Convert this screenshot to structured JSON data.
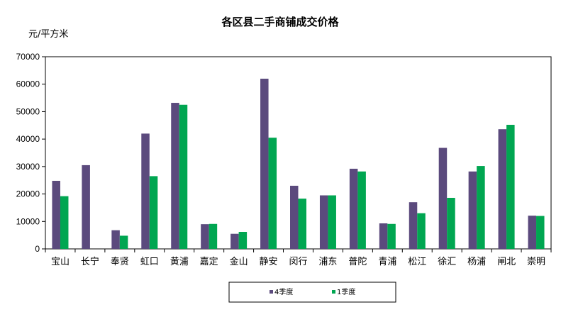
{
  "chart_data": {
    "type": "bar",
    "title": "各区县二手商铺成交价格",
    "ylabel": "元/平方米",
    "ylim": [
      0,
      70000
    ],
    "yticks": [
      0,
      10000,
      20000,
      30000,
      40000,
      50000,
      60000,
      70000
    ],
    "categories": [
      "宝山",
      "长宁",
      "奉贤",
      "虹口",
      "黄浦",
      "嘉定",
      "金山",
      "静安",
      "闵行",
      "浦东",
      "普陀",
      "青浦",
      "松江",
      "徐汇",
      "杨浦",
      "闸北",
      "崇明"
    ],
    "series": [
      {
        "name": "4季度",
        "color": "#5b4a7d",
        "values": [
          24800,
          30500,
          6800,
          42000,
          53200,
          9000,
          5500,
          62000,
          23000,
          19500,
          29200,
          9300,
          17000,
          36800,
          28200,
          43600,
          12100
        ]
      },
      {
        "name": "1季度",
        "color": "#00a651",
        "values": [
          19200,
          null,
          4800,
          26500,
          52500,
          9100,
          6200,
          40500,
          18300,
          19500,
          28200,
          9100,
          13000,
          18600,
          30200,
          45200,
          12000
        ]
      }
    ],
    "legend_position": "bottom",
    "grid": false
  }
}
